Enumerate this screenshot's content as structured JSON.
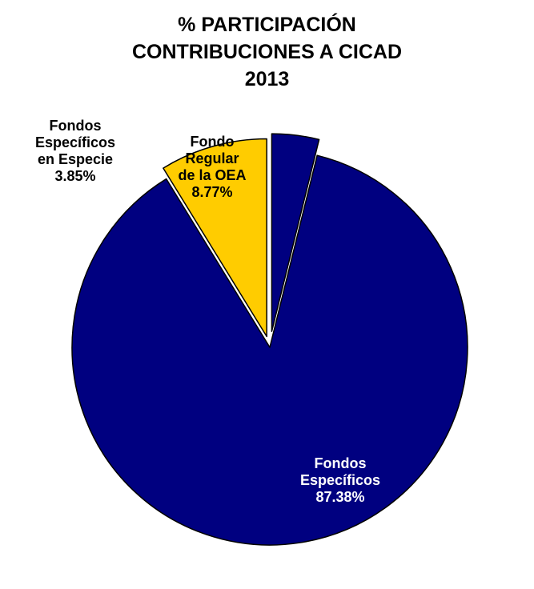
{
  "title_lines": [
    "% PARTICIPACIÓN",
    "CONTRIBUCIONES  A CICAD",
    "2013"
  ],
  "chart_data": {
    "type": "pie",
    "title": "% PARTICIPACIÓN CONTRIBUCIONES A CICAD 2013",
    "slices": [
      {
        "label_lines": [
          "Fondo",
          "Regular",
          "de la OEA",
          "8.77%"
        ],
        "name": "Fondo Regular de la OEA",
        "value": 8.77,
        "color": "#FFCC00",
        "text_color": "#000000",
        "exploded": true
      },
      {
        "label_lines": [
          "Fondos",
          "Específicos",
          "en Especie",
          "3.85%"
        ],
        "name": "Fondos Específicos en Especie",
        "value": 3.85,
        "color": "#000080",
        "text_color": "#000000",
        "exploded": true
      },
      {
        "label_lines": [
          "Fondos",
          "Específicos",
          "87.38%"
        ],
        "name": "Fondos Específicos",
        "value": 87.38,
        "color": "#000080",
        "text_color": "#FFFFFF",
        "exploded": false
      }
    ]
  }
}
